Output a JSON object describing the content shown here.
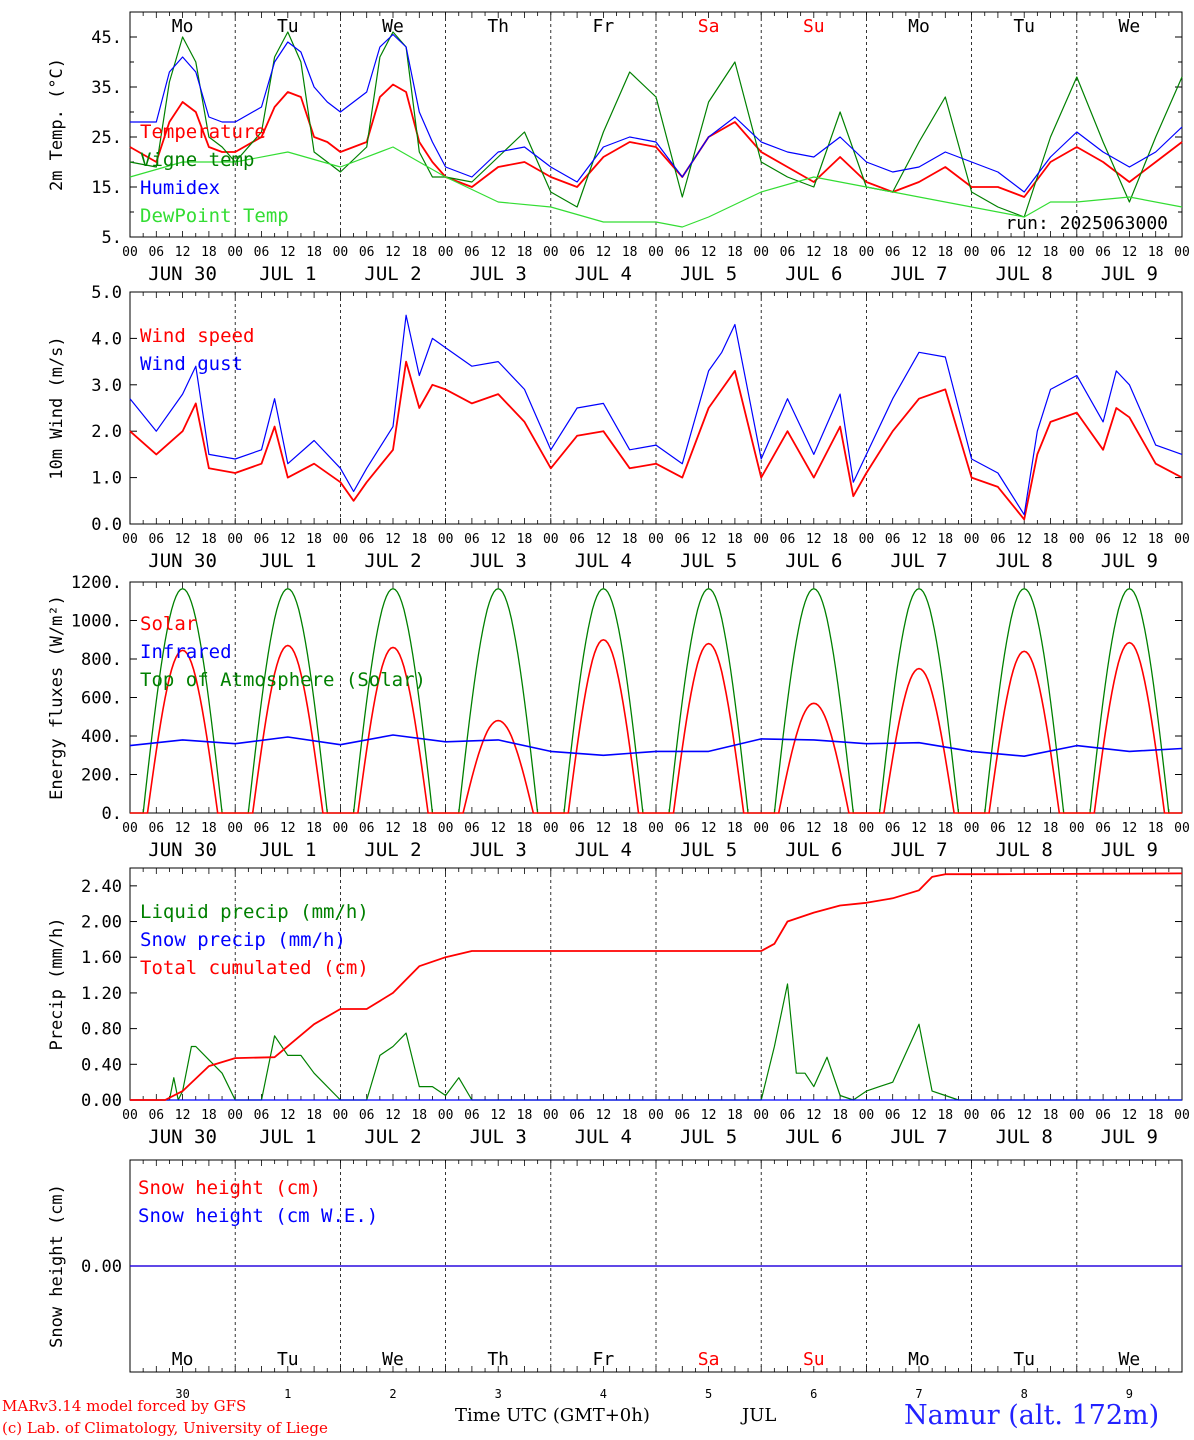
{
  "meta": {
    "run_label": "run: 2025063000",
    "footer_left_1": "MARv3.14 model forced by GFS",
    "footer_left_2": "(c) Lab. of Climatology, University of Liege",
    "footer_center": "Time UTC (GMT+0h)",
    "footer_month": "JUL",
    "location": "Namur (alt. 172m)"
  },
  "colors": {
    "temperature": "#ff0000",
    "vigne": "#008000",
    "humidex": "#0000ff",
    "dewpoint": "#33dd33",
    "weekend": "#ff0000",
    "weekday": "#000000"
  },
  "days": [
    {
      "abbr": "Mo",
      "date": "JUN 30",
      "num": "30",
      "weekend": false
    },
    {
      "abbr": "Tu",
      "date": "JUL  1",
      "num": "1",
      "weekend": false
    },
    {
      "abbr": "We",
      "date": "JUL  2",
      "num": "2",
      "weekend": false
    },
    {
      "abbr": "Th",
      "date": "JUL  3",
      "num": "3",
      "weekend": false
    },
    {
      "abbr": "Fr",
      "date": "JUL  4",
      "num": "4",
      "weekend": false
    },
    {
      "abbr": "Sa",
      "date": "JUL  5",
      "num": "5",
      "weekend": true
    },
    {
      "abbr": "Su",
      "date": "JUL  6",
      "num": "6",
      "weekend": true
    },
    {
      "abbr": "Mo",
      "date": "JUL  7",
      "num": "7",
      "weekend": false
    },
    {
      "abbr": "Tu",
      "date": "JUL  8",
      "num": "8",
      "weekend": false
    },
    {
      "abbr": "We",
      "date": "JUL  9",
      "num": "9",
      "weekend": false
    }
  ],
  "hour_ticks": [
    "00",
    "06",
    "12",
    "18"
  ],
  "end_tick": "00",
  "chart_data": [
    {
      "type": "line",
      "ylabel": "2m Temp. (°C)",
      "ylim": [
        5,
        50
      ],
      "yticks": [
        5,
        15,
        25,
        35,
        45
      ],
      "ytick_labels": [
        "5.",
        "15.",
        "25.",
        "35.",
        "45."
      ],
      "x_unit": "hours since JUN 30 00 UTC",
      "series": [
        {
          "name": "Temperature",
          "color": "#ff0000",
          "x": [
            0,
            6,
            9,
            12,
            15,
            18,
            21,
            24,
            30,
            33,
            36,
            39,
            42,
            45,
            48,
            54,
            57,
            60,
            63,
            66,
            69,
            72,
            78,
            84,
            90,
            96,
            102,
            108,
            114,
            120,
            126,
            132,
            138,
            144,
            150,
            156,
            162,
            168,
            174,
            180,
            186,
            192,
            198,
            204,
            210,
            216,
            222,
            228,
            234,
            240
          ],
          "y": [
            23,
            20,
            28,
            32,
            30,
            23,
            22,
            22,
            25,
            31,
            34,
            33,
            25,
            24,
            22,
            24,
            33,
            35.5,
            34,
            24,
            20,
            17,
            15,
            19,
            20,
            17,
            15,
            21,
            24,
            23,
            17,
            25,
            28,
            22,
            19,
            16,
            21,
            16,
            14,
            16,
            19,
            15,
            15,
            13,
            20,
            23,
            20,
            16,
            20,
            24
          ]
        },
        {
          "name": "Vigne temp",
          "color": "#008000",
          "x": [
            0,
            6,
            9,
            12,
            15,
            18,
            21,
            24,
            30,
            33,
            36,
            39,
            42,
            45,
            48,
            54,
            57,
            60,
            63,
            66,
            69,
            72,
            78,
            84,
            90,
            96,
            102,
            108,
            114,
            120,
            126,
            132,
            138,
            144,
            150,
            156,
            162,
            168,
            174,
            180,
            186,
            192,
            198,
            204,
            210,
            216,
            222,
            228,
            234,
            240
          ],
          "y": [
            20,
            19,
            36,
            45,
            40,
            25,
            23,
            20,
            26,
            41,
            46,
            40,
            22,
            20,
            18,
            23,
            41,
            46,
            43,
            22,
            17,
            17,
            16,
            21,
            26,
            14,
            11,
            26,
            38,
            33,
            13,
            32,
            40,
            20,
            17,
            15,
            30,
            15,
            14,
            24,
            33,
            14,
            11,
            9,
            25,
            37,
            24,
            12,
            25,
            37
          ]
        },
        {
          "name": "Humidex",
          "color": "#0000ff",
          "x": [
            0,
            6,
            9,
            12,
            15,
            18,
            21,
            24,
            30,
            33,
            36,
            39,
            42,
            45,
            48,
            54,
            57,
            60,
            63,
            66,
            69,
            72,
            78,
            84,
            90,
            96,
            102,
            108,
            114,
            120,
            126,
            132,
            138,
            144,
            150,
            156,
            162,
            168,
            174,
            180,
            186,
            192,
            198,
            204,
            210,
            216,
            222,
            228,
            234,
            240
          ],
          "y": [
            28,
            28,
            38,
            41,
            38,
            29,
            28,
            28,
            31,
            40,
            44,
            42,
            35,
            32,
            30,
            34,
            43,
            45.5,
            43,
            30,
            24,
            19,
            17,
            22,
            23,
            19,
            16,
            23,
            25,
            24,
            17,
            25,
            29,
            24,
            22,
            21,
            25,
            20,
            18,
            19,
            22,
            20,
            18,
            14,
            21,
            26,
            22,
            19,
            22,
            27
          ]
        },
        {
          "name": "DewPoint Temp",
          "color": "#33dd33",
          "x": [
            0,
            12,
            24,
            36,
            48,
            60,
            72,
            84,
            96,
            108,
            120,
            126,
            132,
            144,
            156,
            168,
            180,
            192,
            204,
            210,
            216,
            228,
            240
          ],
          "y": [
            17,
            20,
            20,
            22,
            19,
            23,
            17,
            12,
            11,
            8,
            8,
            7,
            9,
            14,
            17,
            15,
            13,
            11,
            9,
            12,
            12,
            13,
            11
          ]
        }
      ]
    },
    {
      "type": "line",
      "ylabel": "10m Wind (m/s)",
      "ylim": [
        0,
        5
      ],
      "yticks": [
        0,
        1,
        2,
        3,
        4,
        5
      ],
      "ytick_labels": [
        "0.0",
        "1.0",
        "2.0",
        "3.0",
        "4.0",
        "5.0"
      ],
      "series": [
        {
          "name": "Wind speed",
          "color": "#ff0000",
          "x": [
            0,
            6,
            12,
            15,
            18,
            24,
            30,
            33,
            36,
            42,
            48,
            51,
            54,
            60,
            63,
            66,
            69,
            72,
            78,
            84,
            90,
            96,
            102,
            108,
            114,
            120,
            126,
            132,
            135,
            138,
            144,
            150,
            156,
            162,
            165,
            168,
            174,
            180,
            186,
            192,
            198,
            204,
            207,
            210,
            216,
            222,
            225,
            228,
            234,
            240
          ],
          "y": [
            2.0,
            1.5,
            2.0,
            2.6,
            1.2,
            1.1,
            1.3,
            2.1,
            1.0,
            1.3,
            0.9,
            0.5,
            0.9,
            1.6,
            3.5,
            2.5,
            3.0,
            2.9,
            2.6,
            2.8,
            2.2,
            1.2,
            1.9,
            2.0,
            1.2,
            1.3,
            1.0,
            2.5,
            2.9,
            3.3,
            1.0,
            2.0,
            1.0,
            2.1,
            0.6,
            1.1,
            2.0,
            2.7,
            2.9,
            1.0,
            0.8,
            0.1,
            1.5,
            2.2,
            2.4,
            1.6,
            2.5,
            2.3,
            1.3,
            1.0
          ]
        },
        {
          "name": "Wind gust",
          "color": "#0000ff",
          "x": [
            0,
            6,
            12,
            15,
            18,
            24,
            30,
            33,
            36,
            42,
            48,
            51,
            54,
            60,
            63,
            66,
            69,
            72,
            78,
            84,
            90,
            96,
            102,
            108,
            114,
            120,
            126,
            132,
            135,
            138,
            144,
            150,
            156,
            162,
            165,
            168,
            174,
            180,
            186,
            192,
            198,
            204,
            207,
            210,
            216,
            222,
            225,
            228,
            234,
            240
          ],
          "y": [
            2.7,
            2.0,
            2.8,
            3.4,
            1.5,
            1.4,
            1.6,
            2.7,
            1.3,
            1.8,
            1.2,
            0.7,
            1.2,
            2.1,
            4.5,
            3.2,
            4.0,
            3.8,
            3.4,
            3.5,
            2.9,
            1.6,
            2.5,
            2.6,
            1.6,
            1.7,
            1.3,
            3.3,
            3.7,
            4.3,
            1.4,
            2.7,
            1.5,
            2.8,
            0.9,
            1.5,
            2.7,
            3.7,
            3.6,
            1.4,
            1.1,
            0.2,
            2.0,
            2.9,
            3.2,
            2.2,
            3.3,
            3.0,
            1.7,
            1.5
          ]
        }
      ]
    },
    {
      "type": "line",
      "ylabel": "Energy fluxes (W/m²)",
      "ylim": [
        0,
        1200
      ],
      "yticks": [
        0,
        200,
        400,
        600,
        800,
        1000,
        1200
      ],
      "ytick_labels": [
        "0.",
        "200.",
        "400.",
        "600.",
        "800.",
        "1000.",
        "1200."
      ],
      "toa_peak": 1165,
      "solar_peaks": [
        845,
        870,
        860,
        480,
        900,
        880,
        570,
        750,
        840,
        885
      ],
      "series": [
        {
          "name": "Solar",
          "color": "#ff0000"
        },
        {
          "name": "Infrared",
          "color": "#0000ff",
          "x": [
            0,
            12,
            24,
            36,
            48,
            60,
            72,
            84,
            96,
            108,
            120,
            132,
            144,
            156,
            168,
            180,
            192,
            204,
            216,
            228,
            240
          ],
          "y": [
            350,
            380,
            360,
            395,
            355,
            405,
            370,
            380,
            320,
            300,
            320,
            320,
            385,
            380,
            360,
            365,
            320,
            295,
            350,
            320,
            335
          ]
        },
        {
          "name": "Top of Atmosphere (Solar)",
          "color": "#008000"
        }
      ]
    },
    {
      "type": "line",
      "ylabel": "Precip (mm/h)",
      "ylim": [
        0,
        2.6
      ],
      "yticks": [
        0,
        0.4,
        0.8,
        1.2,
        1.6,
        2.0,
        2.4
      ],
      "ytick_labels": [
        "0.00",
        "0.40",
        "0.80",
        "1.20",
        "1.60",
        "2.00",
        "2.40"
      ],
      "series": [
        {
          "name": "Liquid precip (mm/h)",
          "color": "#008000",
          "x": [
            0,
            9,
            10,
            11,
            12,
            14,
            15,
            18,
            21,
            24,
            30,
            33,
            36,
            39,
            42,
            48,
            54,
            57,
            60,
            63,
            66,
            69,
            72,
            75,
            78,
            84,
            144,
            147,
            150,
            152,
            154,
            156,
            159,
            162,
            165,
            168,
            171,
            174,
            180,
            183,
            186,
            189,
            192,
            198,
            240
          ],
          "y": [
            0,
            0,
            0.25,
            0,
            0.1,
            0.6,
            0.6,
            0.45,
            0.3,
            0,
            0,
            0.72,
            0.5,
            0.5,
            0.3,
            0,
            0,
            0.5,
            0.6,
            0.75,
            0.15,
            0.15,
            0.05,
            0.25,
            0,
            0,
            0,
            0.6,
            1.3,
            0.3,
            0.3,
            0.15,
            0.48,
            0.05,
            0,
            0.1,
            0.15,
            0.2,
            0.85,
            0.1,
            0.05,
            0,
            0,
            0,
            0
          ]
        },
        {
          "name": "Snow precip (mm/h)",
          "color": "#0000ff",
          "x": [
            0,
            240
          ],
          "y": [
            0,
            0
          ]
        },
        {
          "name": "Total cumulated (cm)",
          "color": "#ff0000",
          "x": [
            0,
            8,
            12,
            18,
            24,
            33,
            42,
            48,
            54,
            60,
            66,
            72,
            78,
            84,
            144,
            147,
            150,
            156,
            162,
            168,
            174,
            180,
            183,
            186,
            192,
            198,
            240
          ],
          "y": [
            0,
            0,
            0.1,
            0.38,
            0.47,
            0.48,
            0.85,
            1.02,
            1.02,
            1.2,
            1.5,
            1.6,
            1.67,
            1.67,
            1.67,
            1.75,
            2.0,
            2.1,
            2.18,
            2.21,
            2.26,
            2.35,
            2.5,
            2.53,
            2.53,
            2.53,
            2.54
          ]
        }
      ]
    },
    {
      "type": "line",
      "ylabel": "Snow height (cm)",
      "ylim": [
        -1,
        1
      ],
      "yticks": [
        0
      ],
      "ytick_labels": [
        "0.00"
      ],
      "series": [
        {
          "name": "Snow height (cm)",
          "color": "#ff0000",
          "x": [
            0,
            240
          ],
          "y": [
            0,
            0
          ]
        },
        {
          "name": "Snow height (cm W.E.)",
          "color": "#0000ff",
          "x": [
            0,
            240
          ],
          "y": [
            0,
            0
          ]
        }
      ]
    }
  ]
}
